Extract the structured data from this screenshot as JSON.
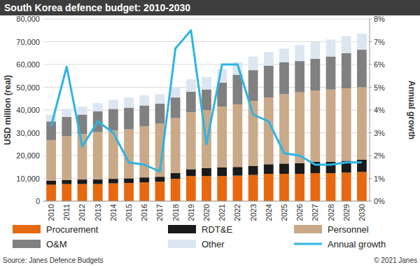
{
  "chart_data": {
    "type": "bar",
    "title": "South Korea defence budget: 2010-2030",
    "ylabel": "USD million (real)",
    "y2label": "Annual growth",
    "source": "Source: Janes Defence Budgets",
    "credit": "© 2021 Janes",
    "stacked": true,
    "grid": true,
    "legend": "bottom",
    "categories": [
      "2010",
      "2011",
      "2012",
      "2013",
      "2014",
      "2015",
      "2016",
      "2017",
      "2018",
      "2019",
      "2020",
      "2021",
      "2022",
      "2023",
      "2024",
      "2025",
      "2026",
      "2027",
      "2028",
      "2029",
      "2030"
    ],
    "series": [
      {
        "name": "Procurement",
        "color": "#e8680f",
        "values": [
          7200,
          7500,
          7500,
          7500,
          7800,
          8000,
          8200,
          8500,
          9800,
          11000,
          11000,
          11000,
          11200,
          11500,
          12000,
          12000,
          12000,
          12300,
          12300,
          12500,
          12800
        ]
      },
      {
        "name": "RDT&E",
        "color": "#1a1a1a",
        "values": [
          1800,
          1800,
          2000,
          2000,
          2000,
          2000,
          2200,
          2200,
          2500,
          3000,
          3500,
          3800,
          3800,
          4000,
          4200,
          4500,
          4700,
          5000,
          5000,
          5200,
          5400
        ]
      },
      {
        "name": "Personnel",
        "color": "#c9a987",
        "values": [
          17800,
          19200,
          20000,
          20800,
          21200,
          21500,
          22400,
          23300,
          24200,
          25000,
          25500,
          26700,
          27500,
          28500,
          29300,
          30500,
          31100,
          31200,
          31700,
          31800,
          31800
        ]
      },
      {
        "name": "O&M",
        "color": "#808080",
        "values": [
          8200,
          8500,
          8500,
          9200,
          9500,
          9500,
          9200,
          8800,
          9000,
          9000,
          9000,
          10500,
          13000,
          13500,
          14000,
          14000,
          13700,
          14000,
          14500,
          15500,
          16500
        ]
      },
      {
        "name": "Other",
        "color": "#dce6f1",
        "values": [
          3000,
          3500,
          3500,
          3500,
          4000,
          4500,
          4500,
          4200,
          4500,
          5500,
          5500,
          6000,
          5500,
          6000,
          6000,
          6000,
          7000,
          7500,
          7500,
          7500,
          7000
        ]
      },
      {
        "name": "Annual growth",
        "color": "#2db4e6",
        "type": "line",
        "axis": "y2",
        "values": [
          3.3,
          5.9,
          2.4,
          3.5,
          3.0,
          1.7,
          1.6,
          1.3,
          6.7,
          7.5,
          2.5,
          6.0,
          6.0,
          3.8,
          3.5,
          2.1,
          2.0,
          1.6,
          1.6,
          1.7,
          1.7
        ]
      }
    ],
    "ylim": [
      0,
      80000
    ],
    "yticks": [
      0,
      {
        "value": 10000,
        "label": "10,000"
      },
      {
        "value": 20000,
        "label": "20,000"
      },
      {
        "value": 30000,
        "label": "30,000"
      },
      {
        "value": 40000,
        "label": "40,000"
      },
      {
        "value": 50000,
        "label": "50,000"
      },
      {
        "value": 60000,
        "label": "60,000"
      },
      {
        "value": 70000,
        "label": "70,000"
      },
      {
        "value": 80000,
        "label": "80,000"
      }
    ],
    "y2lim": [
      0,
      8
    ],
    "y2ticks": [
      {
        "value": 0,
        "label": "0%"
      },
      {
        "value": 1,
        "label": "1%"
      },
      {
        "value": 2,
        "label": "2%"
      },
      {
        "value": 3,
        "label": "3%"
      },
      {
        "value": 4,
        "label": "4%"
      },
      {
        "value": 5,
        "label": "5%"
      },
      {
        "value": 6,
        "label": "6%"
      },
      {
        "value": 7,
        "label": "7%"
      },
      {
        "value": 8,
        "label": "8%"
      }
    ]
  }
}
